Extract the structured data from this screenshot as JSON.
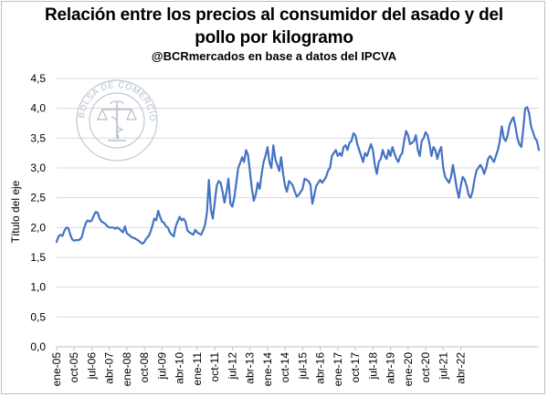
{
  "chart_data": {
    "type": "line",
    "title_lines": [
      "Relación entre los precios al consumidor del asado y del",
      "pollo por kilogramo"
    ],
    "subtitle": "@BCRmercados en base a datos del IPCVA",
    "ylabel": "Título del eje",
    "xlabel": "",
    "ylim": [
      0,
      4.5
    ],
    "y_ticks": [
      "0,0",
      "0,5",
      "1,0",
      "1,5",
      "2,0",
      "2,5",
      "3,0",
      "3,5",
      "4,0",
      "4,5"
    ],
    "x_tick_labels": [
      "ene-05",
      "oct-05",
      "jul-06",
      "abr-07",
      "ene-08",
      "oct-08",
      "jul-09",
      "abr-10",
      "ene-11",
      "oct-11",
      "jul-12",
      "abr-13",
      "ene-14",
      "oct-14",
      "jul-15",
      "abr-16",
      "ene-17",
      "oct-17",
      "jul-18",
      "abr-19",
      "ene-20",
      "oct-20",
      "jul-21",
      "abr-22"
    ],
    "grid": true,
    "line_color": "#4472c4",
    "series": [
      {
        "x_start": "ene-05",
        "frequency": "monthly",
        "values": [
          1.76,
          1.85,
          1.88,
          1.86,
          1.95,
          2.0,
          1.99,
          1.88,
          1.8,
          1.78,
          1.79,
          1.79,
          1.8,
          1.85,
          1.98,
          2.08,
          2.12,
          2.1,
          2.12,
          2.2,
          2.26,
          2.25,
          2.15,
          2.1,
          2.08,
          2.06,
          2.02,
          2.0,
          2.0,
          2.0,
          1.98,
          2.0,
          1.98,
          1.95,
          1.92,
          2.02,
          1.9,
          1.88,
          1.85,
          1.83,
          1.82,
          1.8,
          1.78,
          1.75,
          1.73,
          1.76,
          1.82,
          1.85,
          1.92,
          2.02,
          2.15,
          2.12,
          2.28,
          2.18,
          2.1,
          2.08,
          2.02,
          2.0,
          1.92,
          1.88,
          1.85,
          2.02,
          2.1,
          2.18,
          2.12,
          2.15,
          2.1,
          1.95,
          1.92,
          1.9,
          1.88,
          1.96,
          1.92,
          1.9,
          1.88,
          1.95,
          2.05,
          2.25,
          2.8,
          2.3,
          2.15,
          2.42,
          2.7,
          2.78,
          2.75,
          2.6,
          2.42,
          2.6,
          2.82,
          2.4,
          2.35,
          2.5,
          2.75,
          3.0,
          3.08,
          3.18,
          3.1,
          3.3,
          3.22,
          2.95,
          2.65,
          2.45,
          2.55,
          2.75,
          2.65,
          2.9,
          3.1,
          3.2,
          3.35,
          3.1,
          3.0,
          3.38,
          3.15,
          3.05,
          2.95,
          3.18,
          2.9,
          2.7,
          2.6,
          2.78,
          2.75,
          2.7,
          2.6,
          2.52,
          2.55,
          2.6,
          2.65,
          2.82,
          2.8,
          2.78,
          2.72,
          2.4,
          2.55,
          2.7,
          2.75,
          2.8,
          2.75,
          2.8,
          2.85,
          2.95,
          3.0,
          3.2,
          3.25,
          3.3,
          3.2,
          3.25,
          3.2,
          3.35,
          3.38,
          3.3,
          3.42,
          3.45,
          3.58,
          3.55,
          3.4,
          3.3,
          3.2,
          3.1,
          3.25,
          3.2,
          3.3,
          3.4,
          3.3,
          3.05,
          2.9,
          3.1,
          3.15,
          3.3,
          3.2,
          3.15,
          3.3,
          3.2,
          3.35,
          3.25,
          3.15,
          3.1,
          3.2,
          3.25,
          3.45,
          3.62,
          3.55,
          3.4,
          3.42,
          3.45,
          3.55,
          3.3,
          3.2,
          3.45,
          3.5,
          3.6,
          3.55,
          3.4,
          3.2,
          3.35,
          3.3,
          3.15,
          3.28,
          3.35,
          3.0,
          2.85,
          2.8,
          2.75,
          2.85,
          3.05,
          2.85,
          2.65,
          2.5,
          2.7,
          2.85,
          2.8,
          2.7,
          2.55,
          2.5,
          2.6,
          2.8,
          2.95,
          3.0,
          3.05,
          3.0,
          2.9,
          3.0,
          3.15,
          3.2,
          3.15,
          3.1,
          3.2,
          3.3,
          3.45,
          3.7,
          3.5,
          3.45,
          3.55,
          3.72,
          3.8,
          3.85,
          3.7,
          3.5,
          3.4,
          3.35,
          3.65,
          4.0,
          4.02,
          3.92,
          3.7,
          3.6,
          3.5,
          3.45,
          3.3
        ]
      }
    ]
  }
}
